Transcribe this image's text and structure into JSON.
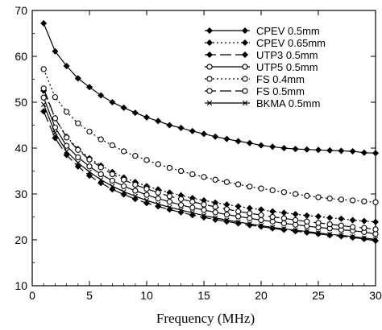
{
  "chart_data": {
    "type": "line",
    "title": "",
    "xlabel": "Frequency (MHz)",
    "ylabel": "",
    "xlim": [
      0,
      30
    ],
    "ylim": [
      10,
      70
    ],
    "xticks": [
      0,
      5,
      10,
      15,
      20,
      25,
      30
    ],
    "yticks": [
      10,
      20,
      30,
      40,
      50,
      60,
      70
    ],
    "grid": false,
    "legend_position": "top-right",
    "x": [
      1,
      2,
      3,
      4,
      5,
      6,
      7,
      8,
      9,
      10,
      11,
      12,
      13,
      14,
      15,
      16,
      17,
      18,
      19,
      20,
      21,
      22,
      23,
      24,
      25,
      26,
      27,
      28,
      29,
      30
    ],
    "series": [
      {
        "name": "CPEV 0.5mm",
        "marker": "diamond-filled",
        "dash": "solid",
        "values": [
          67.2,
          61.1,
          57.9,
          55.2,
          53.3,
          51.5,
          50.0,
          48.8,
          47.7,
          46.7,
          45.9,
          45.0,
          44.4,
          43.7,
          43.1,
          42.5,
          42.0,
          41.5,
          41.1,
          40.6,
          40.3,
          40.0,
          39.8,
          39.7,
          39.6,
          39.5,
          39.4,
          39.3,
          39.0,
          38.9
        ]
      },
      {
        "name": "CPEV 0.65mm",
        "marker": "diamond-filled",
        "dash": "dotted",
        "values": [
          52.5,
          46.5,
          42.5,
          39.8,
          37.8,
          36.2,
          34.8,
          33.6,
          32.6,
          31.7,
          31.0,
          30.3,
          29.7,
          29.1,
          28.6,
          28.1,
          27.7,
          27.3,
          26.9,
          26.6,
          26.2,
          25.9,
          25.6,
          25.3,
          25.1,
          24.8,
          24.6,
          24.3,
          24.1,
          23.9
        ]
      },
      {
        "name": "UTP3 0.5mm",
        "marker": "diamond-filled",
        "dash": "long-dash",
        "values": [
          48.0,
          42.2,
          38.5,
          36.0,
          34.0,
          32.4,
          31.0,
          29.9,
          28.9,
          28.0,
          27.3,
          26.6,
          26.0,
          25.4,
          24.9,
          24.4,
          24.0,
          23.6,
          23.2,
          22.9,
          22.5,
          22.2,
          21.9,
          21.6,
          21.3,
          21.0,
          20.8,
          20.5,
          20.2,
          19.8
        ]
      },
      {
        "name": "UTP5 0.5mm",
        "marker": "circle-open",
        "dash": "solid",
        "values": [
          51.0,
          44.5,
          40.5,
          38.0,
          36.0,
          34.3,
          32.9,
          31.7,
          30.7,
          29.8,
          29.0,
          28.3,
          27.6,
          27.0,
          26.5,
          26.0,
          25.5,
          25.1,
          24.7,
          24.3,
          24.0,
          23.6,
          23.3,
          23.0,
          22.7,
          22.5,
          22.2,
          22.0,
          21.7,
          21.3
        ]
      },
      {
        "name": "FS 0.4mm",
        "marker": "circle-open",
        "dash": "dotted",
        "values": [
          57.2,
          51.1,
          47.9,
          45.4,
          43.6,
          41.9,
          40.6,
          39.3,
          38.3,
          37.4,
          36.5,
          35.7,
          35.0,
          34.3,
          33.7,
          33.1,
          32.6,
          32.1,
          31.6,
          31.2,
          30.8,
          30.4,
          30.0,
          29.6,
          29.3,
          29.0,
          28.8,
          28.6,
          28.4,
          28.2
        ]
      },
      {
        "name": "FS 0.5mm",
        "marker": "circle-open",
        "dash": "long-dash",
        "values": [
          53.0,
          46.5,
          42.3,
          39.6,
          37.5,
          35.8,
          34.3,
          33.1,
          32.0,
          31.1,
          30.3,
          29.5,
          28.9,
          28.3,
          27.7,
          27.2,
          26.7,
          26.2,
          25.8,
          25.4,
          25.0,
          24.7,
          24.3,
          24.0,
          23.7,
          23.4,
          23.1,
          22.8,
          22.6,
          22.3
        ]
      },
      {
        "name": "BKMA 0.5mm",
        "marker": "cross",
        "dash": "solid",
        "values": [
          49.5,
          43.3,
          39.3,
          36.8,
          34.8,
          33.1,
          31.7,
          30.5,
          29.5,
          28.6,
          27.8,
          27.1,
          26.5,
          25.9,
          25.3,
          24.8,
          24.3,
          23.9,
          23.5,
          23.1,
          22.7,
          22.4,
          22.1,
          21.8,
          21.5,
          21.2,
          21.0,
          20.7,
          20.4,
          20.1
        ]
      }
    ]
  }
}
